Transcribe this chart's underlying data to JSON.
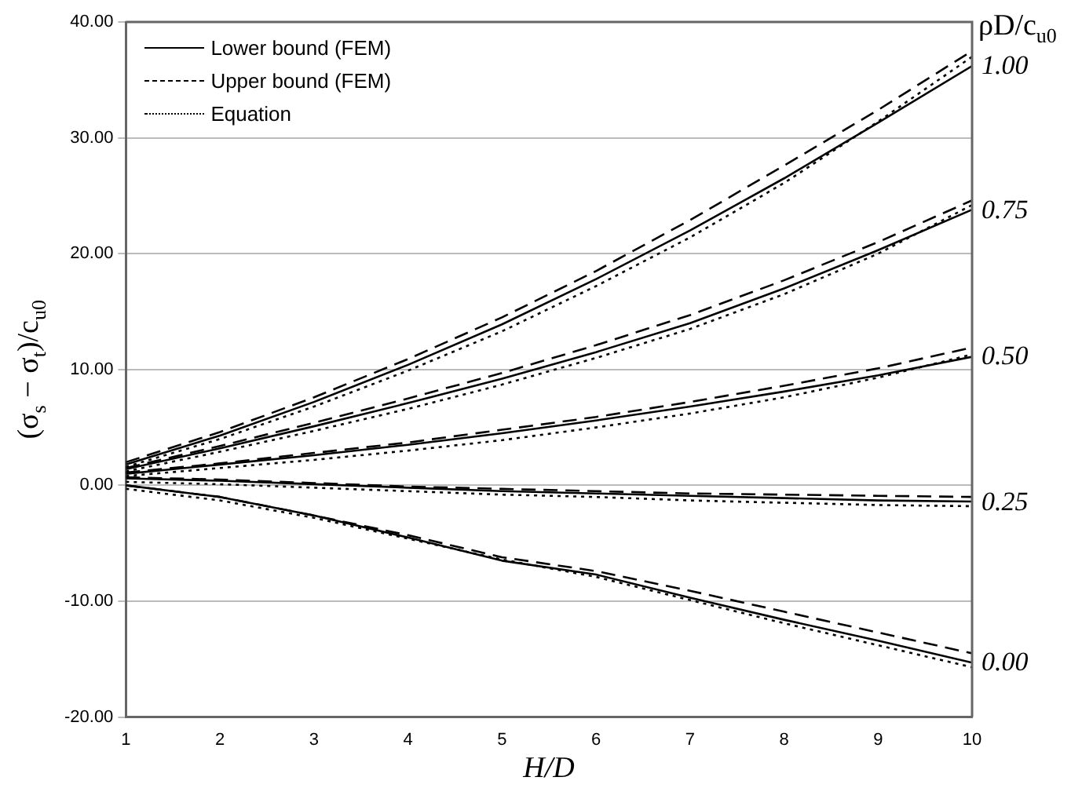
{
  "chart_data": {
    "type": "line",
    "xlabel": "H/D",
    "ylabel": "(σ$_{s}$ − σ$_{t}$)/c$_{u0}$",
    "x": [
      1,
      2,
      3,
      4,
      5,
      6,
      7,
      8,
      9,
      10
    ],
    "xlim": [
      1,
      10
    ],
    "xticks": [
      1,
      2,
      3,
      4,
      5,
      6,
      7,
      8,
      9,
      10
    ],
    "ylim": [
      -20,
      40
    ],
    "yticks": [
      {
        "value": -20,
        "label": "-20.00"
      },
      {
        "value": -10,
        "label": "-10.00"
      },
      {
        "value": 0,
        "label": "0.00"
      },
      {
        "value": 10,
        "label": "10.00"
      },
      {
        "value": 20,
        "label": "20.00"
      },
      {
        "value": 30,
        "label": "30.00"
      },
      {
        "value": 40,
        "label": "40.00"
      }
    ],
    "grid": "y",
    "legend": "top left",
    "marker": "none",
    "series": [
      {
        "name": "Lower bound (FEM)",
        "color": "#000000",
        "line_style": "solid",
        "values": [
          1.8,
          4.3,
          7.2,
          10.4,
          13.9,
          17.8,
          22.0,
          26.5,
          31.3,
          36.2
        ]
      },
      {
        "name": "Upper bound (FEM)",
        "color": "#000000",
        "line_style": "dashed",
        "values": [
          2.0,
          4.6,
          7.6,
          10.9,
          14.5,
          18.5,
          22.9,
          27.6,
          32.4,
          37.5
        ]
      },
      {
        "name": "Equation",
        "color": "#000000",
        "line_style": "dotted",
        "values": [
          1.6,
          4.0,
          6.8,
          9.9,
          13.3,
          17.2,
          21.4,
          26.1,
          31.4,
          37.0
        ]
      },
      {
        "color": "#000000",
        "line_style": "solid",
        "values": [
          1.4,
          3.2,
          5.1,
          7.1,
          9.2,
          11.5,
          14.0,
          17.0,
          20.3,
          23.8
        ]
      },
      {
        "color": "#000000",
        "line_style": "dashed",
        "values": [
          1.5,
          3.4,
          5.4,
          7.5,
          9.7,
          12.1,
          14.7,
          17.7,
          21.0,
          24.6
        ]
      },
      {
        "color": "#000000",
        "line_style": "dotted",
        "values": [
          1.2,
          2.9,
          4.7,
          6.6,
          8.7,
          11.0,
          13.5,
          16.5,
          20.0,
          24.2
        ]
      },
      {
        "color": "#000000",
        "line_style": "solid",
        "values": [
          1.0,
          1.8,
          2.6,
          3.5,
          4.5,
          5.6,
          6.8,
          8.1,
          9.5,
          11.1
        ]
      },
      {
        "color": "#000000",
        "line_style": "dashed",
        "values": [
          1.1,
          1.9,
          2.8,
          3.7,
          4.8,
          5.9,
          7.2,
          8.6,
          10.1,
          11.9
        ]
      },
      {
        "color": "#000000",
        "line_style": "dotted",
        "values": [
          0.8,
          1.5,
          2.2,
          3.0,
          3.9,
          5.0,
          6.2,
          7.6,
          9.3,
          11.3
        ]
      },
      {
        "color": "#000000",
        "line_style": "solid",
        "values": [
          0.6,
          0.4,
          0.1,
          -0.2,
          -0.5,
          -0.7,
          -0.9,
          -1.1,
          -1.3,
          -1.4
        ]
      },
      {
        "color": "#000000",
        "line_style": "dashed",
        "values": [
          0.7,
          0.5,
          0.2,
          -0.1,
          -0.3,
          -0.5,
          -0.7,
          -0.8,
          -0.9,
          -1.0
        ]
      },
      {
        "color": "#000000",
        "line_style": "dotted",
        "values": [
          0.3,
          0.1,
          -0.2,
          -0.5,
          -0.8,
          -1.0,
          -1.3,
          -1.5,
          -1.7,
          -1.8
        ]
      },
      {
        "color": "#000000",
        "line_style": "solid",
        "values": [
          0.0,
          -1.0,
          -2.6,
          -4.5,
          -6.5,
          -7.7,
          -9.7,
          -11.6,
          -13.4,
          -15.3
        ]
      },
      {
        "color": "#000000",
        "line_style": "dashed",
        "values": [
          0.0,
          -1.0,
          -2.6,
          -4.3,
          -6.2,
          -7.4,
          -9.1,
          -10.9,
          -12.7,
          -14.5
        ]
      },
      {
        "color": "#000000",
        "line_style": "dotted",
        "values": [
          -0.3,
          -1.3,
          -2.8,
          -4.6,
          -6.4,
          -7.9,
          -9.9,
          -11.9,
          -13.8,
          -15.7
        ]
      }
    ],
    "annotations": [
      "ρD/c$_{u0}$",
      "1.00",
      "0.75",
      "0.50",
      "0.25",
      "0.00"
    ]
  }
}
